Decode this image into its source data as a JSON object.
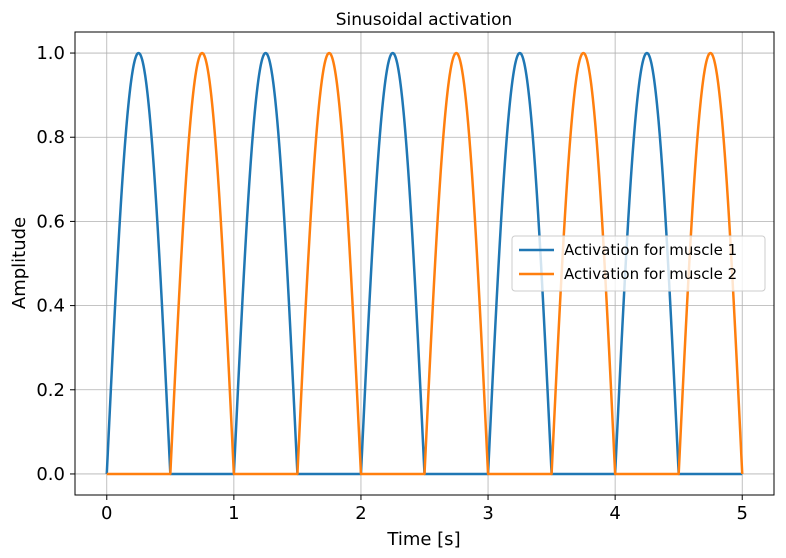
{
  "chart_data": {
    "type": "line",
    "title": "Sinusoidal activation",
    "xlabel": "Time [s]",
    "ylabel": "Amplitude",
    "xlim": [
      -0.25,
      5.25
    ],
    "ylim": [
      -0.05,
      1.05
    ],
    "xticks": [
      0,
      1,
      2,
      3,
      4,
      5
    ],
    "xtick_labels": [
      "0",
      "1",
      "2",
      "3",
      "4",
      "5"
    ],
    "yticks": [
      0.0,
      0.2,
      0.4,
      0.6,
      0.8,
      1.0
    ],
    "ytick_labels": [
      "0.0",
      "0.2",
      "0.4",
      "0.6",
      "0.8",
      "1.0"
    ],
    "grid": true,
    "legend_position": "center-right",
    "frequency_hz": 1,
    "x_range": [
      0,
      5
    ],
    "series": [
      {
        "name": "Activation for muscle 1",
        "color": "#1f77b4",
        "formula": "max(0, sin(2*pi*f*t))"
      },
      {
        "name": "Activation for muscle 2",
        "color": "#ff7f0e",
        "formula": "max(0, -sin(2*pi*f*t))"
      }
    ]
  }
}
